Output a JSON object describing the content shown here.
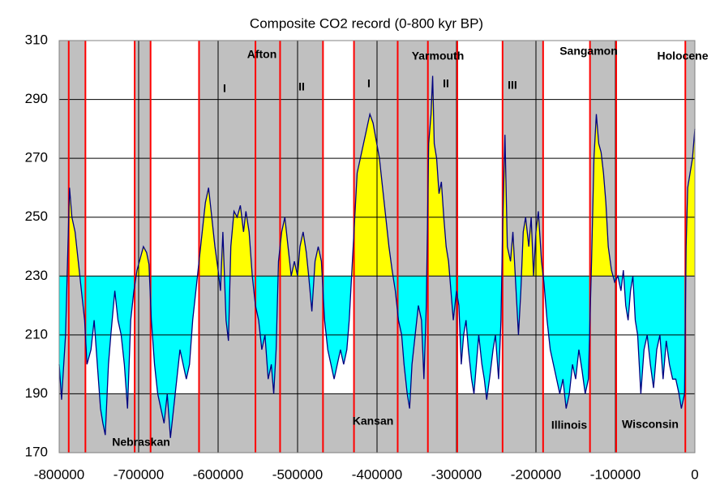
{
  "chart_data": {
    "type": "area",
    "title": "Composite CO2 record (0-800 kyr BP)",
    "x": [
      -800000,
      -797000,
      -792000,
      -789000,
      -787000,
      -784000,
      -780000,
      -776000,
      -772000,
      -768000,
      -765000,
      -760000,
      -756000,
      -752000,
      -748000,
      -745000,
      -742000,
      -738000,
      -735000,
      -730000,
      -726000,
      -722000,
      -718000,
      -714000,
      -710000,
      -706000,
      -702000,
      -698000,
      -694000,
      -690000,
      -687000,
      -684000,
      -680000,
      -676000,
      -672000,
      -668000,
      -664000,
      -660000,
      -656000,
      -652000,
      -648000,
      -644000,
      -640000,
      -636000,
      -632000,
      -628000,
      -624000,
      -620000,
      -616000,
      -612000,
      -608000,
      -604000,
      -600000,
      -597000,
      -594000,
      -590000,
      -587000,
      -584000,
      -580000,
      -576000,
      -572000,
      -568000,
      -565000,
      -561000,
      -557000,
      -553000,
      -549000,
      -545000,
      -541000,
      -537000,
      -533000,
      -530000,
      -527000,
      -524000,
      -520000,
      -516000,
      -512000,
      -508000,
      -504000,
      -500000,
      -497000,
      -493000,
      -489000,
      -486000,
      -482000,
      -478000,
      -474000,
      -470000,
      -466000,
      -462000,
      -458000,
      -454000,
      -450000,
      -446000,
      -442000,
      -438000,
      -435000,
      -432000,
      -429000,
      -425000,
      -421000,
      -417000,
      -413000,
      -409000,
      -405000,
      -401000,
      -397000,
      -393000,
      -389000,
      -385000,
      -381000,
      -377000,
      -373000,
      -369000,
      -366000,
      -362000,
      -359000,
      -356000,
      -352000,
      -348000,
      -344000,
      -341000,
      -338000,
      -335000,
      -332000,
      -330000,
      -328000,
      -325000,
      -322000,
      -319000,
      -316000,
      -313000,
      -310000,
      -307000,
      -304000,
      -300000,
      -297000,
      -294000,
      -291000,
      -288000,
      -285000,
      -281000,
      -278000,
      -275000,
      -272000,
      -268000,
      -265000,
      -262000,
      -258000,
      -254000,
      -251000,
      -247000,
      -244000,
      -242000,
      -239000,
      -236000,
      -232000,
      -229000,
      -225000,
      -222000,
      -219000,
      -216000,
      -213000,
      -209000,
      -206000,
      -203000,
      -200000,
      -197000,
      -193000,
      -190000,
      -186000,
      -182000,
      -178000,
      -174000,
      -170000,
      -166000,
      -162000,
      -158000,
      -154000,
      -150000,
      -146000,
      -142000,
      -138000,
      -134000,
      -130000,
      -127000,
      -124000,
      -121000,
      -118000,
      -115000,
      -112000,
      -109000,
      -105000,
      -101000,
      -97000,
      -93000,
      -90000,
      -87000,
      -84000,
      -81000,
      -78000,
      -75000,
      -72000,
      -68000,
      -64000,
      -60000,
      -56000,
      -52000,
      -48000,
      -44000,
      -40000,
      -36000,
      -32000,
      -28000,
      -24000,
      -20000,
      -17000,
      -13000,
      -11000,
      -9000,
      -6000,
      -3000,
      0
    ],
    "series": [
      {
        "color": "#000080",
        "values": [
          200,
          188,
          210,
          240,
          260,
          250,
          245,
          235,
          225,
          215,
          200,
          205,
          215,
          200,
          185,
          180,
          176,
          200,
          210,
          225,
          215,
          210,
          200,
          185,
          215,
          225,
          232,
          236,
          240,
          238,
          234,
          215,
          200,
          190,
          185,
          180,
          190,
          175,
          185,
          195,
          205,
          200,
          195,
          200,
          215,
          225,
          235,
          245,
          255,
          260,
          250,
          240,
          232,
          225,
          245,
          215,
          208,
          240,
          252,
          250,
          254,
          245,
          252,
          245,
          230,
          220,
          215,
          205,
          210,
          195,
          200,
          190,
          205,
          235,
          245,
          250,
          240,
          230,
          235,
          230,
          240,
          245,
          238,
          230,
          218,
          235,
          240,
          235,
          215,
          205,
          200,
          195,
          200,
          205,
          200,
          205,
          215,
          230,
          245,
          265,
          270,
          275,
          280,
          285,
          282,
          276,
          270,
          260,
          250,
          240,
          232,
          225,
          215,
          210,
          200,
          190,
          185,
          200,
          210,
          220,
          215,
          195,
          220,
          275,
          285,
          298,
          275,
          270,
          258,
          262,
          250,
          240,
          235,
          225,
          215,
          225,
          220,
          200,
          210,
          215,
          205,
          195,
          190,
          200,
          210,
          200,
          195,
          188,
          196,
          205,
          210,
          195,
          215,
          245,
          278,
          240,
          235,
          245,
          225,
          210,
          225,
          245,
          250,
          240,
          250,
          230,
          245,
          252,
          235,
          228,
          215,
          205,
          200,
          195,
          190,
          195,
          185,
          190,
          200,
          195,
          205,
          198,
          190,
          195,
          235,
          270,
          285,
          275,
          272,
          265,
          255,
          240,
          232,
          228,
          230,
          225,
          232,
          220,
          215,
          225,
          230,
          215,
          210,
          190,
          205,
          210,
          200,
          192,
          205,
          210,
          195,
          208,
          200,
          195,
          195,
          190,
          185,
          190,
          240,
          260,
          265,
          270,
          280
        ]
      }
    ],
    "threshold": 230,
    "above_color": "#ffff00",
    "below_color": "#00ffff",
    "boundaries": [
      -788000,
      -767000,
      -705000,
      -685000,
      -624000,
      -553000,
      -522000,
      -468000,
      -429000,
      -374000,
      -336000,
      -299000,
      -242000,
      -191000,
      -132000,
      -99000,
      -12000
    ],
    "boundary_color": "#ff0000",
    "white_spans": [
      {
        "x": [
          -767000,
          -705000
        ],
        "y": [
          190,
          310
        ]
      },
      {
        "x": [
          -685000,
          -624000
        ],
        "y": [
          190,
          310
        ]
      },
      {
        "x": [
          -468000,
          -429000
        ],
        "y": [
          190,
          310
        ]
      },
      {
        "x": [
          -299000,
          -242000
        ],
        "y": [
          190,
          310
        ]
      },
      {
        "x": [
          -191000,
          -132000
        ],
        "y": [
          190,
          310
        ]
      },
      {
        "x": [
          -99000,
          -12000
        ],
        "y": [
          190,
          310
        ]
      }
    ],
    "annotations": [
      "Afton",
      "I",
      "II",
      "I",
      "Yarmouth",
      "II",
      "III",
      "Sangamon",
      "Holocene",
      "Nebraskan",
      "Kansan",
      "Illinois",
      "Wisconsin"
    ],
    "xlim": [
      -800000,
      0
    ],
    "xticks": [
      -800000,
      -700000,
      -600000,
      -500000,
      -400000,
      -300000,
      -200000,
      -100000,
      0
    ],
    "ylim": [
      170,
      310
    ],
    "yticks": [
      170,
      190,
      210,
      230,
      250,
      270,
      290,
      310
    ],
    "grid": true
  }
}
